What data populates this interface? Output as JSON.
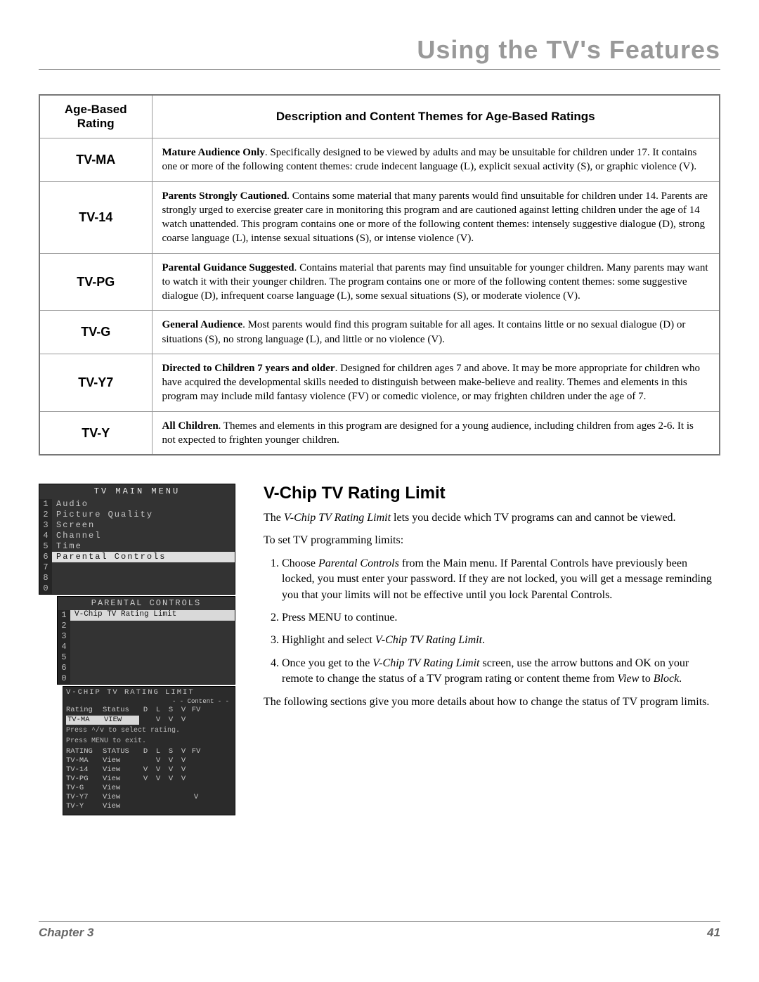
{
  "page_title": "Using the TV's Features",
  "ratings_table": {
    "header_rating": "Age-Based Rating",
    "header_desc": "Description and Content Themes for Age-Based Ratings",
    "rows": [
      {
        "rating": "TV-MA",
        "lead": "Mature Audience Only",
        "desc": ". Specifically designed to be viewed by adults and may be unsuitable for children under 17. It contains one or more of the following content themes: crude indecent language (L), explicit sexual activity (S), or graphic violence (V)."
      },
      {
        "rating": "TV-14",
        "lead": "Parents Strongly Cautioned",
        "desc": ". Contains some material that many parents would find unsuitable for children under 14. Parents are strongly urged to exercise greater care in monitoring this program and are cautioned against letting children under the age of 14 watch unattended. This program contains one or more of the following content themes: intensely suggestive dialogue (D), strong coarse language (L), intense sexual situations (S), or intense violence (V)."
      },
      {
        "rating": "TV-PG",
        "lead": "Parental Guidance Suggested",
        "desc": ". Contains material that parents may find unsuitable for younger children. Many parents may want to watch it with their younger children. The program contains one or more of the following content themes: some suggestive dialogue (D), infrequent coarse language (L), some sexual situations (S), or moderate violence (V)."
      },
      {
        "rating": "TV-G",
        "lead": "General Audience",
        "desc": ". Most parents would find this program suitable for all ages. It contains little or no sexual dialogue (D) or situations (S), no strong language (L), and little or no violence (V)."
      },
      {
        "rating": "TV-Y7",
        "lead": "Directed to Children 7 years and older",
        "desc": ". Designed for children ages 7 and above. It may be more appropriate for children who have acquired the developmental skills needed to distinguish between make-believe and reality. Themes and elements in this program may include mild fantasy violence (FV) or comedic violence, or may frighten children under the age of 7."
      },
      {
        "rating": "TV-Y",
        "lead": "All Children",
        "desc": ". Themes and elements in this program are designed for a young audience, including children from ages 2-6. It is not expected to frighten younger children."
      }
    ]
  },
  "osd": {
    "main_title": "TV MAIN MENU",
    "main_items": [
      {
        "n": "1",
        "label": "Audio"
      },
      {
        "n": "2",
        "label": "Picture Quality"
      },
      {
        "n": "3",
        "label": "Screen"
      },
      {
        "n": "4",
        "label": "Channel"
      },
      {
        "n": "5",
        "label": "Time"
      },
      {
        "n": "6",
        "label": "Parental Controls"
      },
      {
        "n": "7",
        "label": ""
      },
      {
        "n": "8",
        "label": ""
      },
      {
        "n": "0",
        "label": ""
      }
    ],
    "sub_title": "PARENTAL CONTROLS",
    "sub_items": [
      {
        "n": "1",
        "label": "V-Chip TV Rating Limit"
      },
      {
        "n": "2",
        "label": ""
      },
      {
        "n": "3",
        "label": ""
      },
      {
        "n": "4",
        "label": ""
      },
      {
        "n": "5",
        "label": ""
      },
      {
        "n": "6",
        "label": ""
      },
      {
        "n": "0",
        "label": ""
      }
    ],
    "grid": {
      "title": "V-CHIP TV RATING LIMIT",
      "content_label": "- - Content - -",
      "head": {
        "rating": "Rating",
        "status": "Status",
        "flags": [
          "D",
          "L",
          "S",
          "V",
          "FV"
        ]
      },
      "sel": {
        "rating": "TV-MA",
        "status": "VIEW",
        "flags": [
          "",
          "V",
          "V",
          "V",
          ""
        ]
      },
      "hint1": "Press ^/v to select rating.",
      "hint2": "Press MENU to exit.",
      "head2": {
        "rating": "RATING",
        "status": "STATUS",
        "flags": [
          "D",
          "L",
          "S",
          "V",
          "FV"
        ]
      },
      "rows": [
        {
          "rating": "TV-MA",
          "status": "View",
          "flags": [
            "",
            "V",
            "V",
            "V",
            ""
          ]
        },
        {
          "rating": "TV-14",
          "status": "View",
          "flags": [
            "V",
            "V",
            "V",
            "V",
            ""
          ]
        },
        {
          "rating": "TV-PG",
          "status": "View",
          "flags": [
            "V",
            "V",
            "V",
            "V",
            ""
          ]
        },
        {
          "rating": "TV-G",
          "status": "View",
          "flags": [
            "",
            "",
            "",
            "",
            ""
          ]
        },
        {
          "rating": "TV-Y7",
          "status": "View",
          "flags": [
            "",
            "",
            "",
            "",
            "V"
          ]
        },
        {
          "rating": "TV-Y",
          "status": "View",
          "flags": [
            "",
            "",
            "",
            "",
            ""
          ]
        }
      ]
    }
  },
  "section": {
    "heading": "V-Chip TV Rating Limit",
    "intro_a": "The ",
    "intro_i": "V-Chip TV Rating Limit",
    "intro_b": " lets you decide which TV programs can and cannot be viewed.",
    "lead": "To set TV programming limits:",
    "steps": {
      "s1a": "Choose ",
      "s1i": "Parental Controls",
      "s1b": " from the Main menu. If Parental Controls have previously been locked, you must enter your password. If they are not locked, you will get a message reminding you that your limits will not be effective until you lock Parental Controls.",
      "s2": "Press MENU to continue.",
      "s3a": "Highlight and select ",
      "s3i": "V-Chip TV Rating Limit",
      "s3b": ".",
      "s4a": "Once you get to the ",
      "s4i": "V-Chip TV Rating Limit",
      "s4b": " screen, use the arrow buttons and OK on your remote to change the status of a TV program rating or content theme from ",
      "s4c": "View",
      "s4d": " to ",
      "s4e": "Block",
      "s4f": "."
    },
    "outro": "The following sections give you more details about how to change the status of TV program limits."
  },
  "footer": {
    "chapter": "Chapter 3",
    "page": "41"
  },
  "colors": {
    "page_title": "#999999",
    "osd_bg": "#333333",
    "osd_text": "#d0d0d0",
    "rule": "#666666"
  }
}
